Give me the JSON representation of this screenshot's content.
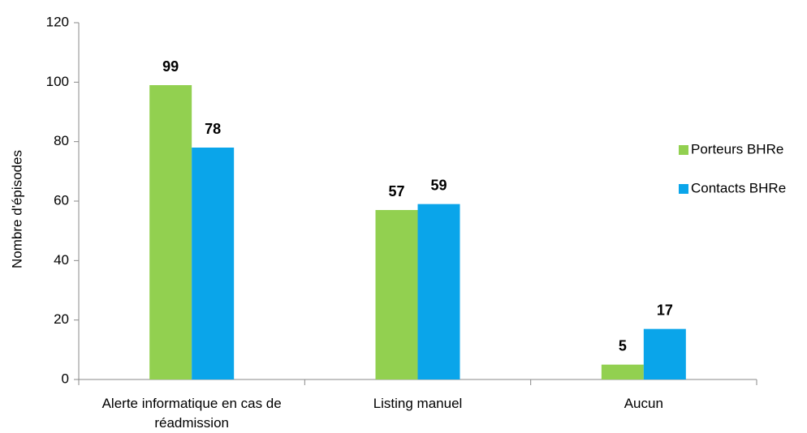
{
  "chart_data": {
    "type": "bar",
    "y_label": "Nombre d'épisodes",
    "categories": [
      "Alerte informatique en cas de réadmission",
      "Listing manuel",
      "Aucun"
    ],
    "series": [
      {
        "name": "Porteurs BHRe",
        "color": "#92d050",
        "values": [
          99,
          57,
          5
        ]
      },
      {
        "name": "Contacts BHRe",
        "color": "#0aa5ea",
        "values": [
          78,
          59,
          17
        ]
      }
    ],
    "ylim": [
      0,
      120
    ],
    "yticks": [
      0,
      20,
      40,
      60,
      80,
      100,
      120
    ],
    "grid": false,
    "legend": "right"
  }
}
